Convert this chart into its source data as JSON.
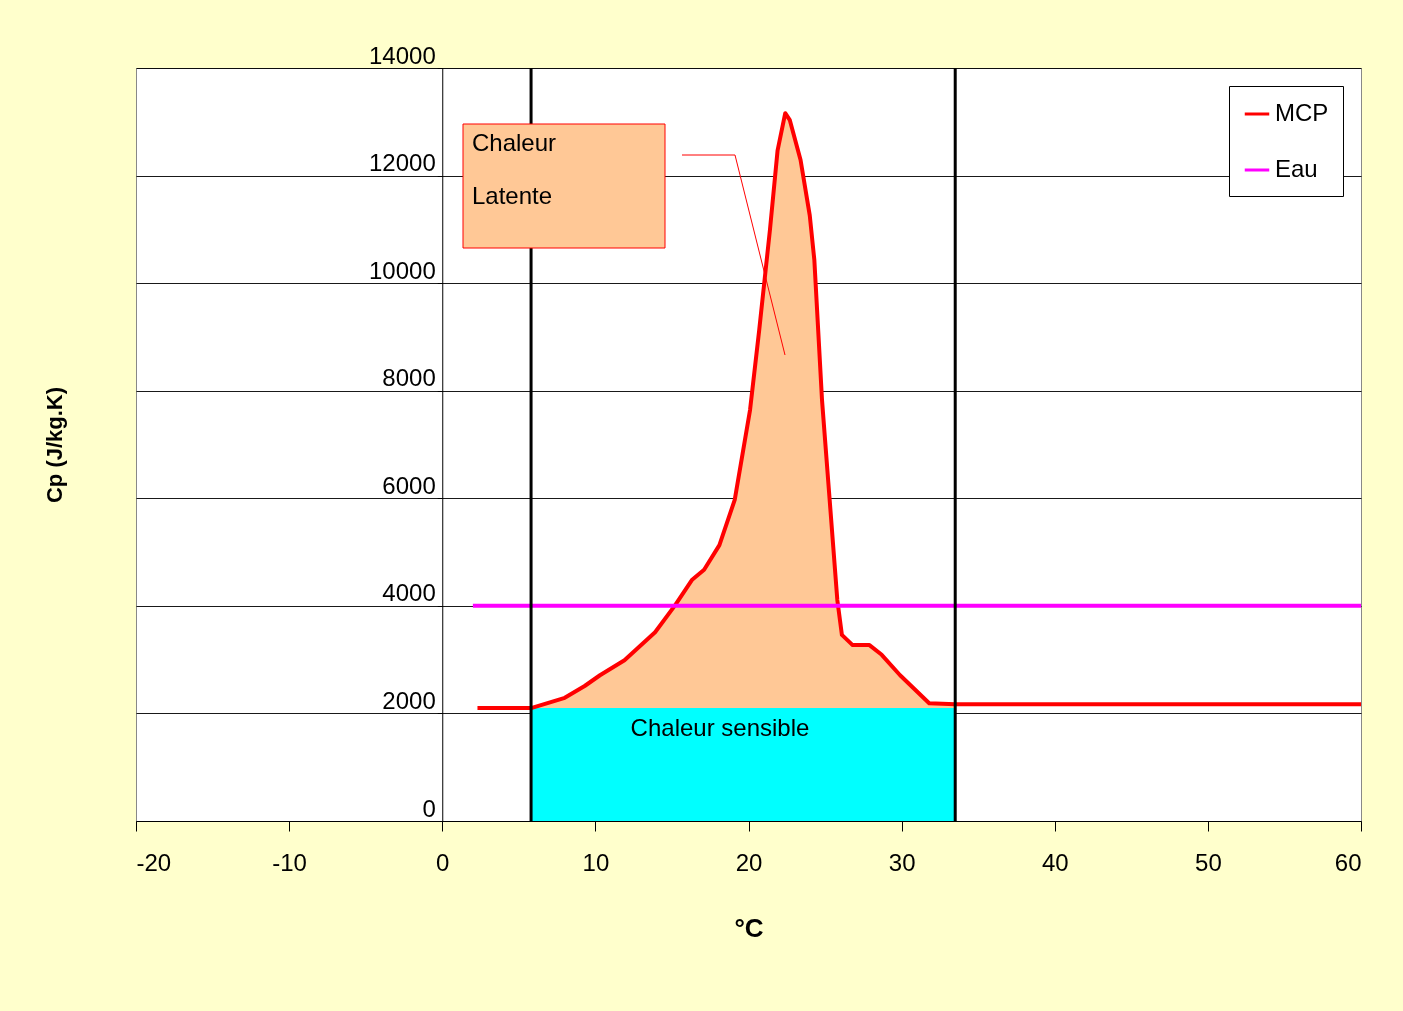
{
  "chart_data": {
    "type": "line",
    "xlabel": "°C",
    "ylabel": "Cp (J/kg.K)",
    "xlim": [
      -20,
      60
    ],
    "ylim": [
      0,
      14000
    ],
    "xticks": [
      -20,
      -10,
      0,
      10,
      20,
      30,
      40,
      50,
      60
    ],
    "yticks": [
      0,
      2000,
      4000,
      6000,
      8000,
      10000,
      12000,
      14000
    ],
    "grid": "y",
    "legend": "top right",
    "series": [
      {
        "type": "area",
        "color": "#ffc896",
        "x": [
          5.8,
          8.0,
          9.3,
          10.3,
          11.9,
          13.9,
          15.2,
          16.3,
          17.1,
          18.1,
          19.1,
          20.1,
          20.7,
          21.4,
          21.9,
          22.4,
          22.7,
          23.4,
          24.0,
          24.3,
          24.8,
          25.3,
          25.8,
          26.1,
          26.8,
          27.9,
          28.7,
          29.9,
          31.8,
          33.5
        ],
        "values": [
          2100,
          2290,
          2510,
          2710,
          2990,
          3510,
          4010,
          4480,
          4670,
          5130,
          5970,
          7640,
          9130,
          10990,
          12470,
          13160,
          13030,
          12290,
          11260,
          10430,
          7830,
          5970,
          4110,
          3460,
          3270,
          3270,
          3090,
          2710,
          2190,
          2170
        ]
      },
      {
        "type": "area",
        "color": "#00ffff",
        "x": [
          5.8,
          33.5
        ],
        "values": [
          2100,
          2100
        ]
      },
      {
        "name": "MCP",
        "color": "#ff0000",
        "x": [
          2.3,
          5.8,
          8.0,
          9.3,
          10.3,
          11.9,
          13.9,
          15.2,
          16.3,
          17.1,
          18.1,
          19.1,
          20.1,
          20.7,
          21.4,
          21.9,
          22.4,
          22.7,
          23.4,
          24.0,
          24.3,
          24.8,
          25.3,
          25.8,
          26.1,
          26.8,
          27.9,
          28.7,
          29.9,
          31.8,
          33.5,
          60
        ],
        "values": [
          2100,
          2100,
          2290,
          2510,
          2710,
          2990,
          3510,
          4010,
          4480,
          4670,
          5130,
          5970,
          7640,
          9130,
          10990,
          12470,
          13160,
          13030,
          12290,
          11260,
          10430,
          7830,
          5970,
          4110,
          3460,
          3270,
          3270,
          3090,
          2710,
          2190,
          2170,
          2170
        ]
      },
      {
        "name": "Eau",
        "color": "#ff00ff",
        "x": [
          2,
          60
        ],
        "values": [
          4000,
          4000
        ]
      }
    ],
    "ref_lines": [
      {
        "axis": "x",
        "value": 5.8,
        "color": "#000000"
      },
      {
        "axis": "x",
        "value": 33.5,
        "color": "#000000"
      }
    ],
    "annotations": [
      "Chaleur sensible",
      "Chaleur Latente"
    ]
  }
}
